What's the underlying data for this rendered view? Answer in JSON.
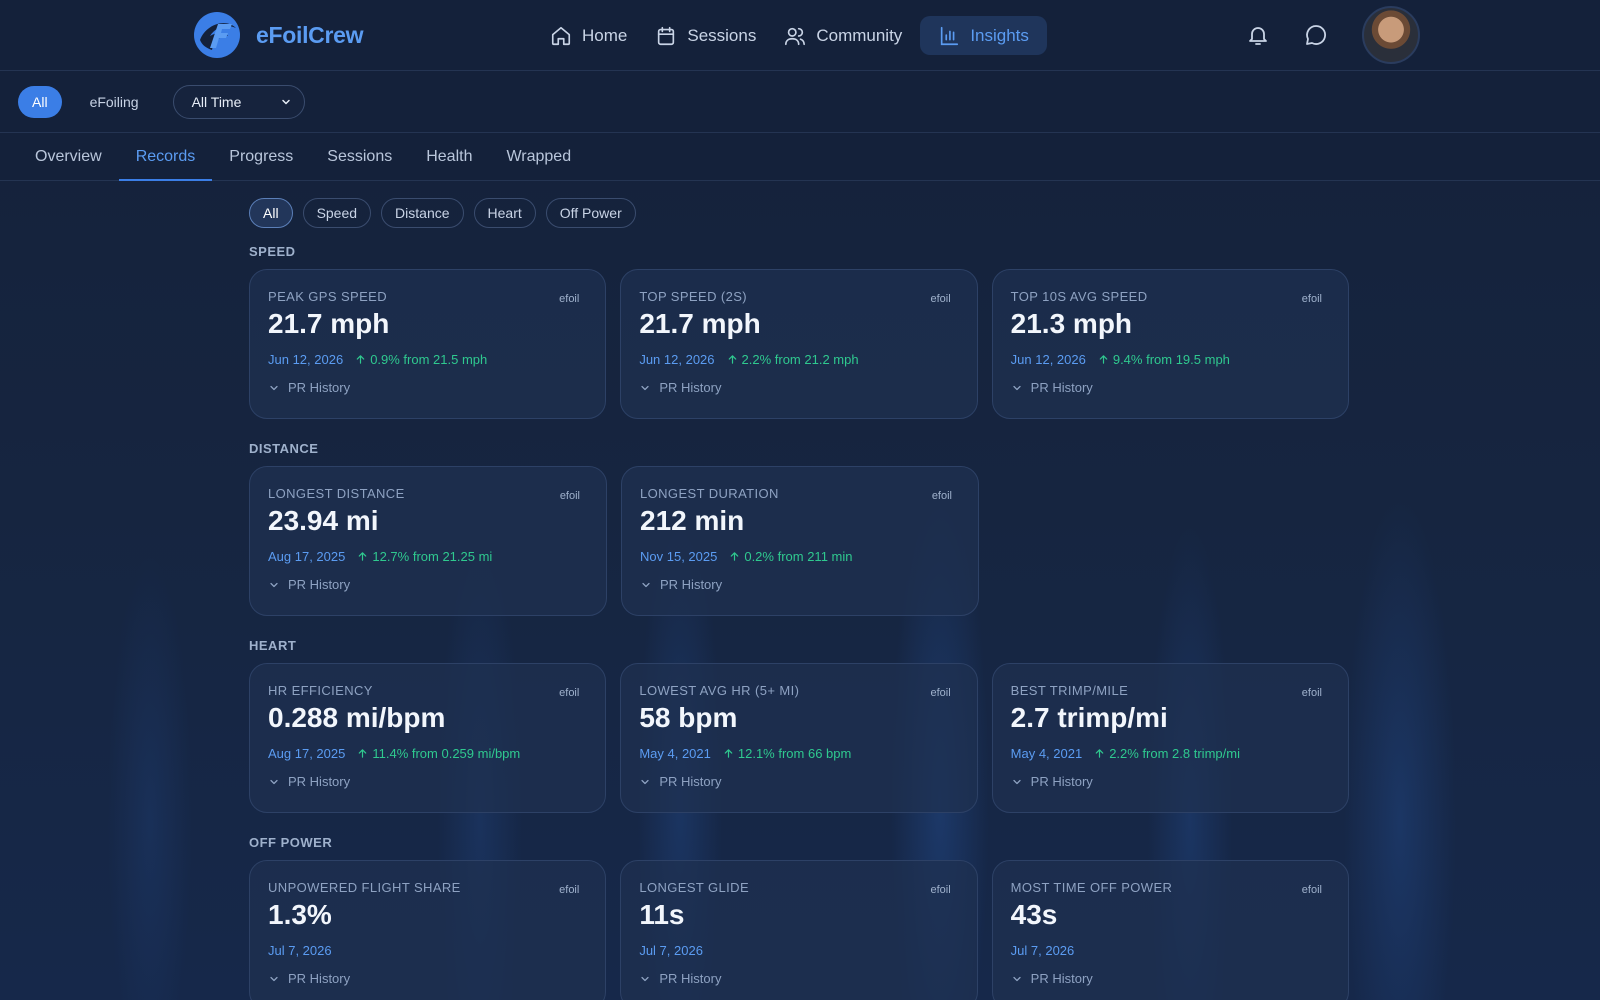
{
  "brand": {
    "name": "eFoilCrew"
  },
  "nav": {
    "items": [
      {
        "label": "Home",
        "icon": "home-icon",
        "active": false
      },
      {
        "label": "Sessions",
        "icon": "calendar-icon",
        "active": false
      },
      {
        "label": "Community",
        "icon": "users-icon",
        "active": false
      },
      {
        "label": "Insights",
        "icon": "bar-chart-icon",
        "active": true
      }
    ]
  },
  "filter": {
    "sports": [
      {
        "label": "All",
        "active": true
      },
      {
        "label": "eFoiling",
        "active": false
      }
    ],
    "range": "All Time"
  },
  "subtabs": [
    {
      "label": "Overview",
      "active": false
    },
    {
      "label": "Records",
      "active": true
    },
    {
      "label": "Progress",
      "active": false
    },
    {
      "label": "Sessions",
      "active": false
    },
    {
      "label": "Health",
      "active": false
    },
    {
      "label": "Wrapped",
      "active": false
    }
  ],
  "chips": [
    {
      "label": "All",
      "active": true
    },
    {
      "label": "Speed",
      "active": false
    },
    {
      "label": "Distance",
      "active": false
    },
    {
      "label": "Heart",
      "active": false
    },
    {
      "label": "Off Power",
      "active": false
    }
  ],
  "history_label": "PR History",
  "sections": [
    {
      "title": "SPEED",
      "cards": [
        {
          "label": "PEAK GPS SPEED",
          "tag": "efoil",
          "value": "21.7 mph",
          "date": "Jun 12, 2026",
          "delta": "0.9% from 21.5 mph"
        },
        {
          "label": "TOP SPEED (2S)",
          "tag": "efoil",
          "value": "21.7 mph",
          "date": "Jun 12, 2026",
          "delta": "2.2% from 21.2 mph"
        },
        {
          "label": "TOP 10S AVG SPEED",
          "tag": "efoil",
          "value": "21.3 mph",
          "date": "Jun 12, 2026",
          "delta": "9.4% from 19.5 mph"
        }
      ]
    },
    {
      "title": "DISTANCE",
      "cards": [
        {
          "label": "LONGEST DISTANCE",
          "tag": "efoil",
          "value": "23.94 mi",
          "date": "Aug 17, 2025",
          "delta": "12.7% from 21.25 mi"
        },
        {
          "label": "LONGEST DURATION",
          "tag": "efoil",
          "value": "212 min",
          "date": "Nov 15, 2025",
          "delta": "0.2% from 211 min"
        }
      ]
    },
    {
      "title": "HEART",
      "cards": [
        {
          "label": "HR EFFICIENCY",
          "tag": "efoil",
          "value": "0.288 mi/bpm",
          "date": "Aug 17, 2025",
          "delta": "11.4% from 0.259 mi/bpm"
        },
        {
          "label": "LOWEST AVG HR (5+ MI)",
          "tag": "efoil",
          "value": "58 bpm",
          "date": "May 4, 2021",
          "delta": "12.1% from 66 bpm"
        },
        {
          "label": "BEST TRIMP/MILE",
          "tag": "efoil",
          "value": "2.7 trimp/mi",
          "date": "May 4, 2021",
          "delta": "2.2% from 2.8 trimp/mi"
        }
      ]
    },
    {
      "title": "OFF POWER",
      "cards": [
        {
          "label": "UNPOWERED FLIGHT SHARE",
          "tag": "efoil",
          "value": "1.3%",
          "date": "Jul 7, 2026",
          "delta": ""
        },
        {
          "label": "LONGEST GLIDE",
          "tag": "efoil",
          "value": "11s",
          "date": "Jul 7, 2026",
          "delta": ""
        },
        {
          "label": "MOST TIME OFF POWER",
          "tag": "efoil",
          "value": "43s",
          "date": "Jul 7, 2026",
          "delta": ""
        }
      ]
    }
  ],
  "colors": {
    "accent": "#3b7ee6",
    "link": "#5b9cf2",
    "positive": "#2fc98f",
    "background": "#14213a"
  }
}
